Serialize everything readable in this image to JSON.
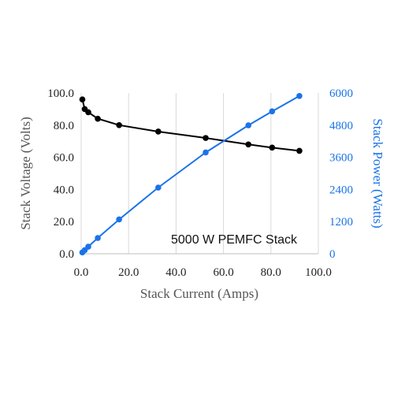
{
  "chart_data": {
    "type": "line",
    "title": "",
    "annotation": "5000 W PEMFC Stack",
    "xlabel": "Stack Current (Amps)",
    "ylabel": "Stack Voltage (Volts)",
    "y2label": "Stack Power (Watts)",
    "xlim": [
      0,
      100
    ],
    "ylim": [
      0,
      100
    ],
    "y2lim": [
      0,
      6000
    ],
    "x_ticks": [
      "0.0",
      "20.0",
      "40.0",
      "60.0",
      "80.0",
      "100.0"
    ],
    "y_ticks": [
      "0.0",
      "20.0",
      "40.0",
      "60.0",
      "80.0",
      "100.0"
    ],
    "y2_ticks": [
      "0",
      "1200",
      "2400",
      "3600",
      "4800",
      "6000"
    ],
    "grid": "vertical",
    "series": [
      {
        "axis": "left",
        "color": "#000000",
        "x": [
          0.5,
          1.5,
          3.0,
          7.0,
          16.0,
          32.5,
          52.5,
          70.5,
          80.5,
          92.0
        ],
        "y": [
          96.0,
          90.0,
          88.0,
          84.0,
          80.0,
          76.0,
          72.0,
          68.0,
          66.0,
          64.0
        ]
      },
      {
        "axis": "right",
        "color": "#1a73e8",
        "x": [
          0.5,
          1.5,
          3.0,
          7.0,
          16.0,
          32.5,
          52.5,
          70.5,
          80.5,
          92.0
        ],
        "y": [
          48,
          135,
          264,
          588,
          1280,
          2470,
          3780,
          4794,
          5313,
          5888
        ]
      }
    ]
  }
}
